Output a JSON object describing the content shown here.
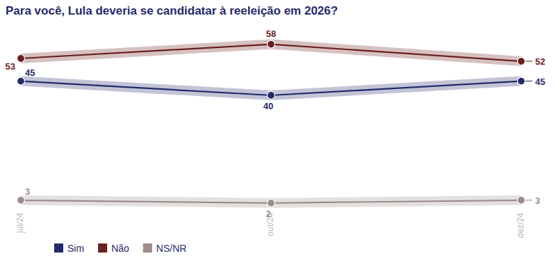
{
  "chart_data": {
    "type": "line",
    "title": "Para você, Lula deveria se candidatar à reeleição em 2026?",
    "categories": [
      "jul/24",
      "out/24",
      "dez/24"
    ],
    "series": [
      {
        "name": "Sim",
        "color": "#232a6b",
        "values": [
          45,
          40,
          45
        ],
        "marker": "circle"
      },
      {
        "name": "Não",
        "color": "#6b1f1f",
        "values": [
          53,
          58,
          52
        ],
        "marker": "circle"
      },
      {
        "name": "NS/NR",
        "color": "#9a8f8c",
        "values": [
          3,
          2,
          3
        ],
        "marker": "circle"
      }
    ],
    "ylim": [
      0,
      66
    ],
    "grid": false,
    "legend": "bottom left",
    "data_labels": true,
    "tick_labels": "x"
  }
}
